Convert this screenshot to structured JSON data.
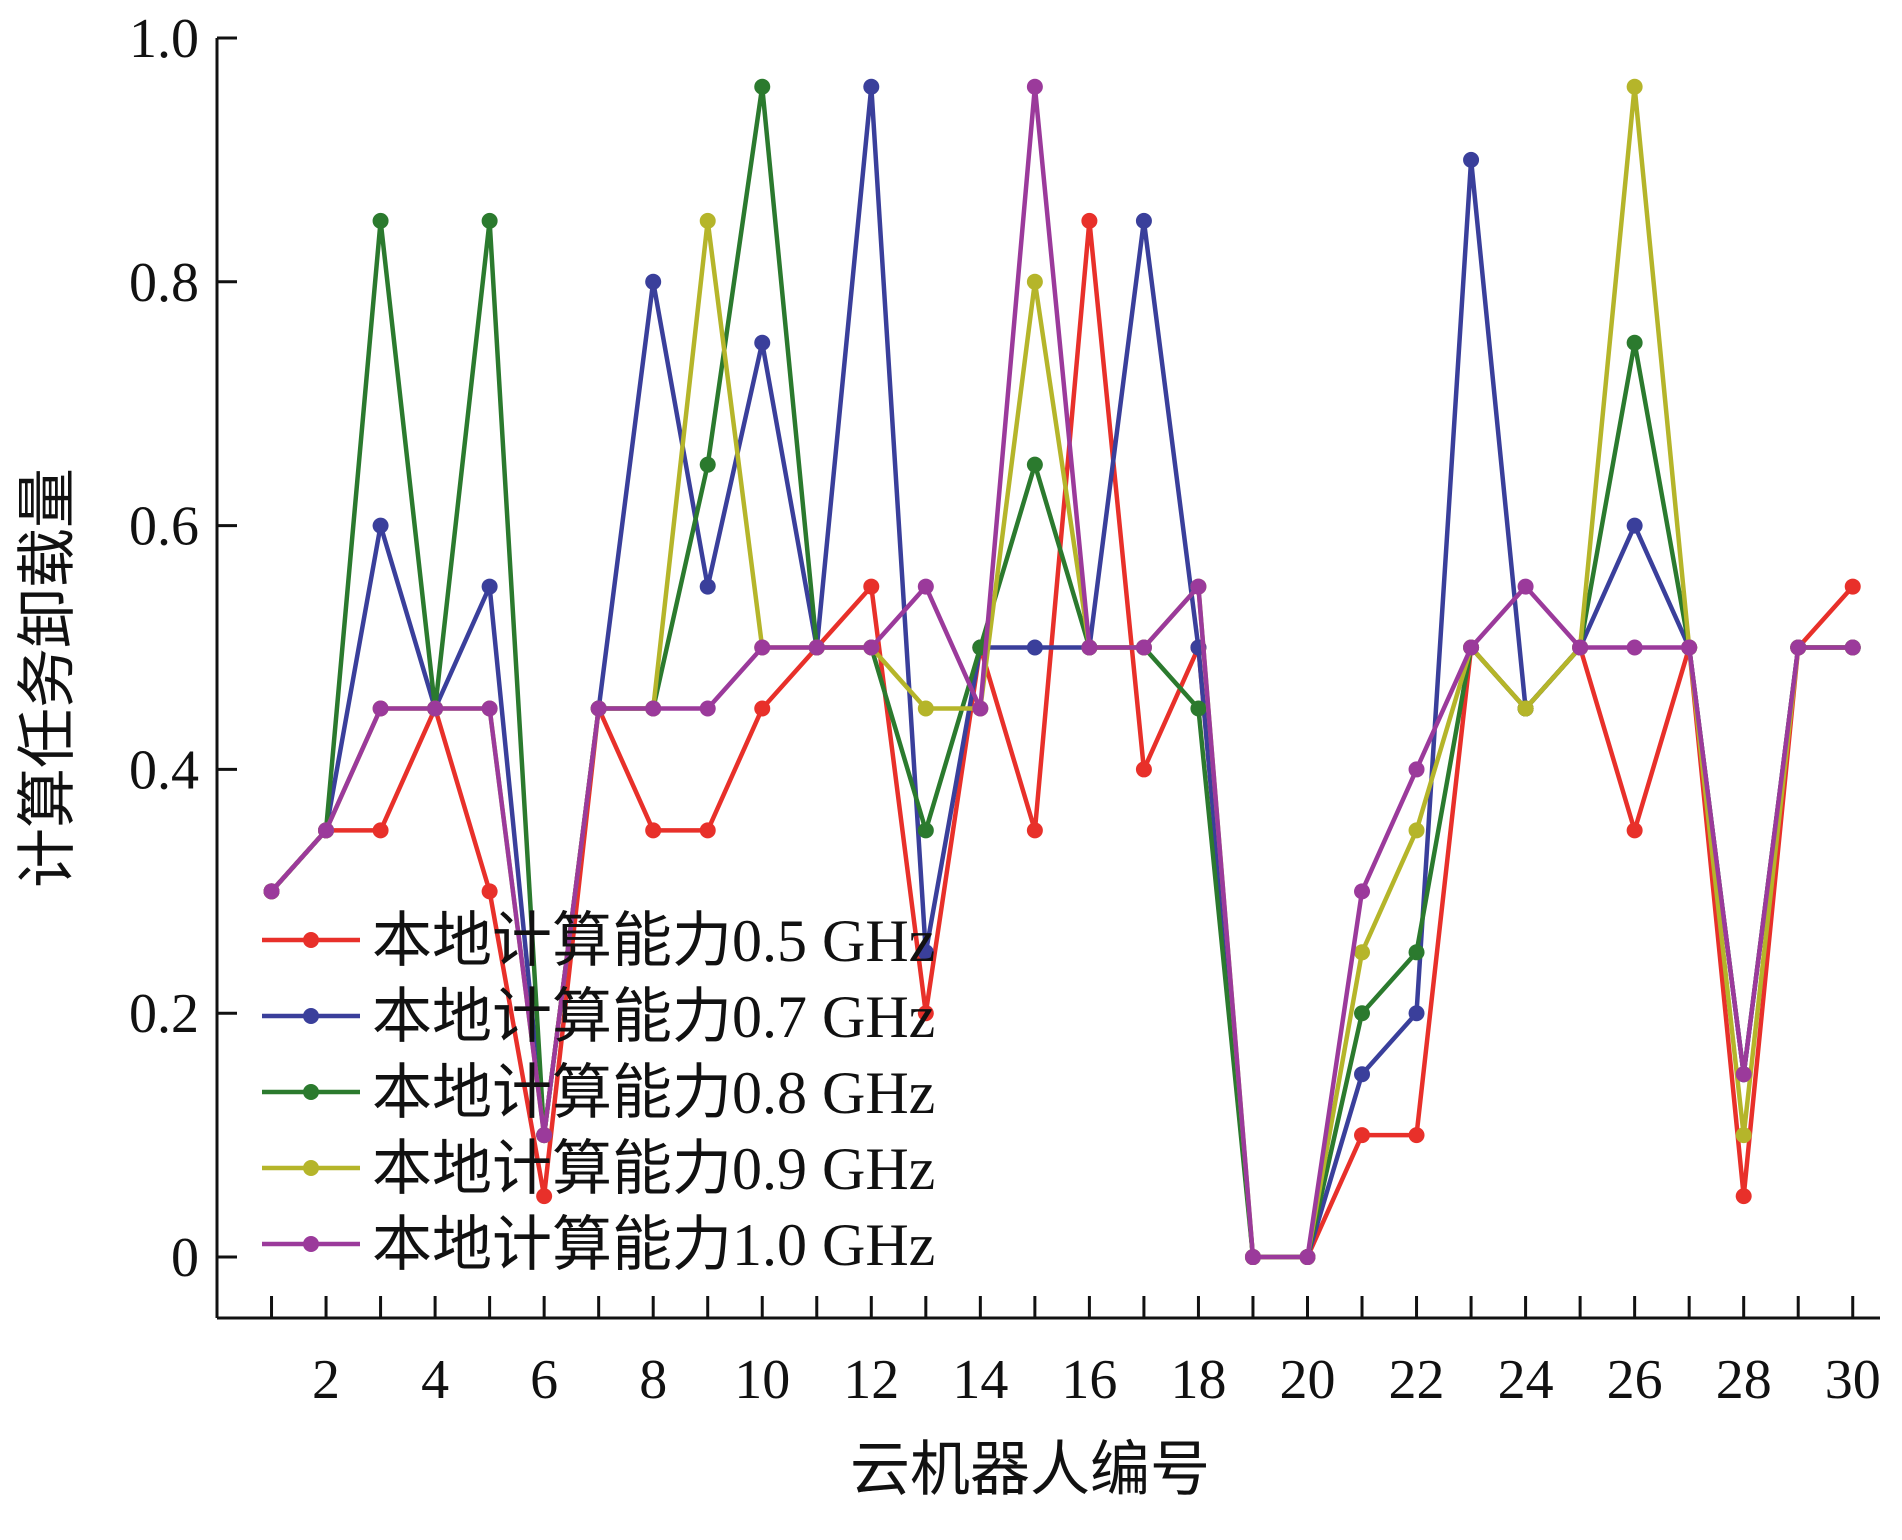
{
  "chart_data": {
    "type": "line",
    "xlabel": "云机器人编号",
    "ylabel": "计算任务卸载量",
    "x": [
      1,
      2,
      3,
      4,
      5,
      6,
      7,
      8,
      9,
      10,
      11,
      12,
      13,
      14,
      15,
      16,
      17,
      18,
      19,
      20,
      21,
      22,
      23,
      24,
      25,
      26,
      27,
      28,
      29,
      30
    ],
    "xticks": [
      "2",
      "4",
      "6",
      "8",
      "10",
      "12",
      "14",
      "16",
      "18",
      "20",
      "22",
      "24",
      "26",
      "28",
      "30"
    ],
    "yticks": [
      "0",
      "0.2",
      "0.4",
      "0.6",
      "0.8",
      "1.0"
    ],
    "xlim": [
      0,
      30.5
    ],
    "ylim": [
      -0.05,
      1.0
    ],
    "grid": false,
    "legend_position": "lower-left",
    "series": [
      {
        "name": "本地计算能力0.5 GHz",
        "color": "#e8302a",
        "values": [
          0.3,
          0.35,
          0.35,
          0.45,
          0.3,
          0.05,
          0.45,
          0.35,
          0.35,
          0.45,
          0.5,
          0.55,
          0.2,
          0.5,
          0.35,
          0.85,
          0.4,
          0.5,
          0.0,
          0.0,
          0.1,
          0.1,
          0.5,
          0.45,
          0.5,
          0.35,
          0.5,
          0.05,
          0.5,
          0.55
        ]
      },
      {
        "name": "本地计算能力0.7 GHz",
        "color": "#3a3f9b",
        "values": [
          0.3,
          0.35,
          0.6,
          0.45,
          0.55,
          0.1,
          0.45,
          0.8,
          0.55,
          0.75,
          0.5,
          0.96,
          0.25,
          0.5,
          0.5,
          0.5,
          0.85,
          0.5,
          0.0,
          0.0,
          0.15,
          0.2,
          0.9,
          0.45,
          0.5,
          0.6,
          0.5,
          0.15,
          0.5,
          0.5
        ]
      },
      {
        "name": "本地计算能力0.8 GHz",
        "color": "#2b7a2e",
        "values": [
          0.3,
          0.35,
          0.85,
          0.45,
          0.85,
          0.1,
          0.45,
          0.45,
          0.65,
          0.96,
          0.5,
          0.5,
          0.35,
          0.5,
          0.65,
          0.5,
          0.5,
          0.45,
          0.0,
          0.0,
          0.2,
          0.25,
          0.5,
          0.45,
          0.5,
          0.75,
          0.5,
          0.15,
          0.5,
          0.5
        ]
      },
      {
        "name": "本地计算能力0.9 GHz",
        "color": "#b5b52a",
        "values": [
          0.3,
          0.35,
          0.45,
          0.45,
          0.45,
          0.1,
          0.45,
          0.45,
          0.85,
          0.5,
          0.5,
          0.5,
          0.45,
          0.45,
          0.8,
          0.5,
          0.5,
          0.55,
          0.0,
          0.0,
          0.25,
          0.35,
          0.5,
          0.45,
          0.5,
          0.96,
          0.5,
          0.1,
          0.5,
          0.5
        ]
      },
      {
        "name": "本地计算能力1.0 GHz",
        "color": "#9b3a9b",
        "values": [
          0.3,
          0.35,
          0.45,
          0.45,
          0.45,
          0.1,
          0.45,
          0.45,
          0.45,
          0.5,
          0.5,
          0.5,
          0.55,
          0.45,
          0.96,
          0.5,
          0.5,
          0.55,
          0.0,
          0.0,
          0.3,
          0.4,
          0.5,
          0.55,
          0.5,
          0.5,
          0.5,
          0.15,
          0.5,
          0.5
        ]
      }
    ]
  }
}
